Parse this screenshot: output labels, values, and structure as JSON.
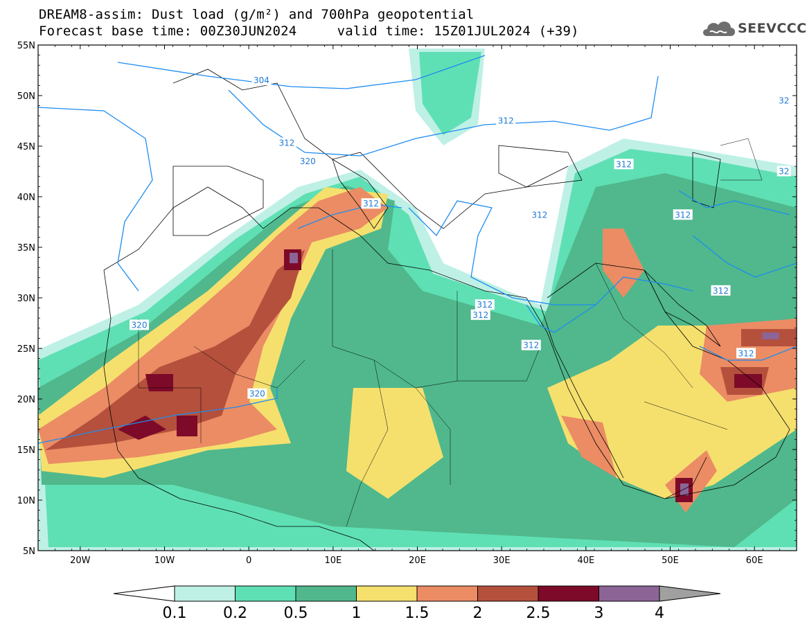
{
  "title": {
    "line1": "DREAM8-assim: Dust load (g/m²) and 700hPa geopotential",
    "line2": "Forecast base time: 00Z30JUN2024     valid time: 15Z01JUL2024 (+39)"
  },
  "logo": {
    "text": "SEEVCCC",
    "icon": "cloud-icon"
  },
  "axes": {
    "lon_labels": [
      "20W",
      "10W",
      "0",
      "10E",
      "20E",
      "30E",
      "40E",
      "50E",
      "60E"
    ],
    "lon_values": [
      -20,
      -10,
      0,
      10,
      20,
      30,
      40,
      50,
      60
    ],
    "lat_labels": [
      "55N",
      "50N",
      "45N",
      "40N",
      "35N",
      "30N",
      "25N",
      "20N",
      "15N",
      "10N",
      "5N"
    ],
    "lat_values": [
      55,
      50,
      45,
      40,
      35,
      30,
      25,
      20,
      15,
      10,
      5
    ],
    "lon_range": [
      -25,
      65
    ],
    "lat_range": [
      5,
      55
    ]
  },
  "colorbar": {
    "labels": [
      "0.1",
      "0.2",
      "0.5",
      "1",
      "1.5",
      "2",
      "2.5",
      "3",
      "4"
    ],
    "levels": [
      0.1,
      0.2,
      0.5,
      1,
      1.5,
      2,
      2.5,
      3,
      4
    ],
    "colors": [
      "#ffffff",
      "#bff0e6",
      "#5fe0b4",
      "#50b88c",
      "#f5e06e",
      "#eb8c64",
      "#b4503c",
      "#7d0a28",
      "#8c6496",
      "#a0a0a0"
    ]
  },
  "contours": {
    "color": "#1e8cf0",
    "labels": [
      {
        "text": "304",
        "lon": 1.5,
        "lat": 51.5
      },
      {
        "text": "312",
        "lon": 4.5,
        "lat": 45.3
      },
      {
        "text": "312",
        "lon": 30.5,
        "lat": 47.5
      },
      {
        "text": "312",
        "lon": 44.5,
        "lat": 43.2
      },
      {
        "text": "312",
        "lon": 14.5,
        "lat": 39.3
      },
      {
        "text": "312",
        "lon": 34.5,
        "lat": 38.2
      },
      {
        "text": "312",
        "lon": 51.5,
        "lat": 38.2
      },
      {
        "text": "312",
        "lon": 56,
        "lat": 30.7
      },
      {
        "text": "312",
        "lon": 28,
        "lat": 29.3
      },
      {
        "text": "312",
        "lon": 27.5,
        "lat": 28.3
      },
      {
        "text": "312",
        "lon": 33.5,
        "lat": 25.3
      },
      {
        "text": "312",
        "lon": 59,
        "lat": 24.5
      },
      {
        "text": "320",
        "lon": 7,
        "lat": 43.5
      },
      {
        "text": "320",
        "lon": -13,
        "lat": 27.3
      },
      {
        "text": "320",
        "lon": 1,
        "lat": 20.5
      },
      {
        "text": "32",
        "lon": 63.5,
        "lat": 49.5
      },
      {
        "text": "32",
        "lon": 63.5,
        "lat": 42.5
      }
    ]
  }
}
